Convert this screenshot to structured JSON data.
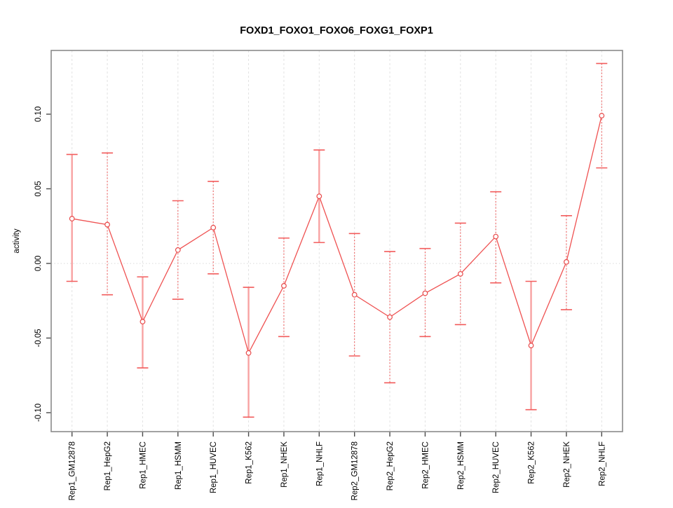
{
  "title": "FOXD1_FOXO1_FOXO6_FOXG1_FOXP1",
  "chart_data": {
    "type": "line",
    "title": "FOXD1_FOXO1_FOXO6_FOXG1_FOXP1",
    "xlabel": "",
    "ylabel": "activity",
    "categories": [
      "Rep1_GM12878",
      "Rep1_HepG2",
      "Rep1_HMEC",
      "Rep1_HSMM",
      "Rep1_HUVEC",
      "Rep1_K562",
      "Rep1_NHEK",
      "Rep1_NHLF",
      "Rep2_GM12878",
      "Rep2_HepG2",
      "Rep2_HMEC",
      "Rep2_HSMM",
      "Rep2_HUVEC",
      "Rep2_K562",
      "Rep2_NHEK",
      "Rep2_NHLF"
    ],
    "series": [
      {
        "name": "activity",
        "values": [
          0.03,
          0.026,
          -0.039,
          0.009,
          0.024,
          -0.06,
          -0.015,
          0.045,
          -0.021,
          -0.036,
          -0.02,
          -0.007,
          0.018,
          -0.055,
          0.001,
          0.099
        ]
      }
    ],
    "error_high": [
      0.073,
      0.074,
      -0.009,
      0.042,
      0.055,
      -0.016,
      0.017,
      0.076,
      0.02,
      0.008,
      0.01,
      0.027,
      0.048,
      -0.012,
      0.032,
      0.134
    ],
    "error_low": [
      -0.012,
      -0.021,
      -0.07,
      -0.024,
      -0.007,
      -0.103,
      -0.049,
      0.014,
      -0.062,
      -0.08,
      -0.049,
      -0.041,
      -0.013,
      -0.098,
      -0.031,
      0.064
    ],
    "error_bar_styles": [
      "solid",
      "dashed",
      "solid",
      "dashed",
      "dashed",
      "solid",
      "dashed",
      "solid",
      "dashed",
      "dashed",
      "dashed",
      "dashed",
      "dashed",
      "solid",
      "dashed",
      "dashed"
    ],
    "y_ticks": [
      {
        "value": -0.1,
        "label": "-0.10"
      },
      {
        "value": -0.05,
        "label": "-0.05"
      },
      {
        "value": 0.0,
        "label": "0.00"
      },
      {
        "value": 0.05,
        "label": "0.05"
      },
      {
        "value": 0.1,
        "label": "0.10"
      }
    ],
    "ylim": [
      -0.1127,
      0.1427
    ],
    "grid": {
      "vertical_gridlines": "dashed",
      "zero_line": "dotted",
      "legend": "none"
    },
    "colors": {
      "marker": "#e84a4a",
      "trend_line": "#ef5252",
      "error_solid": "#f8a2a2",
      "error_dashed": "#ef5555",
      "error_cap": "#f25c5c",
      "gridline": "#e2e2e2",
      "zero_line": "#d9d9d9",
      "frame": "#8a8a8a",
      "tick": "#4a4a4a",
      "text": "#000000"
    }
  }
}
